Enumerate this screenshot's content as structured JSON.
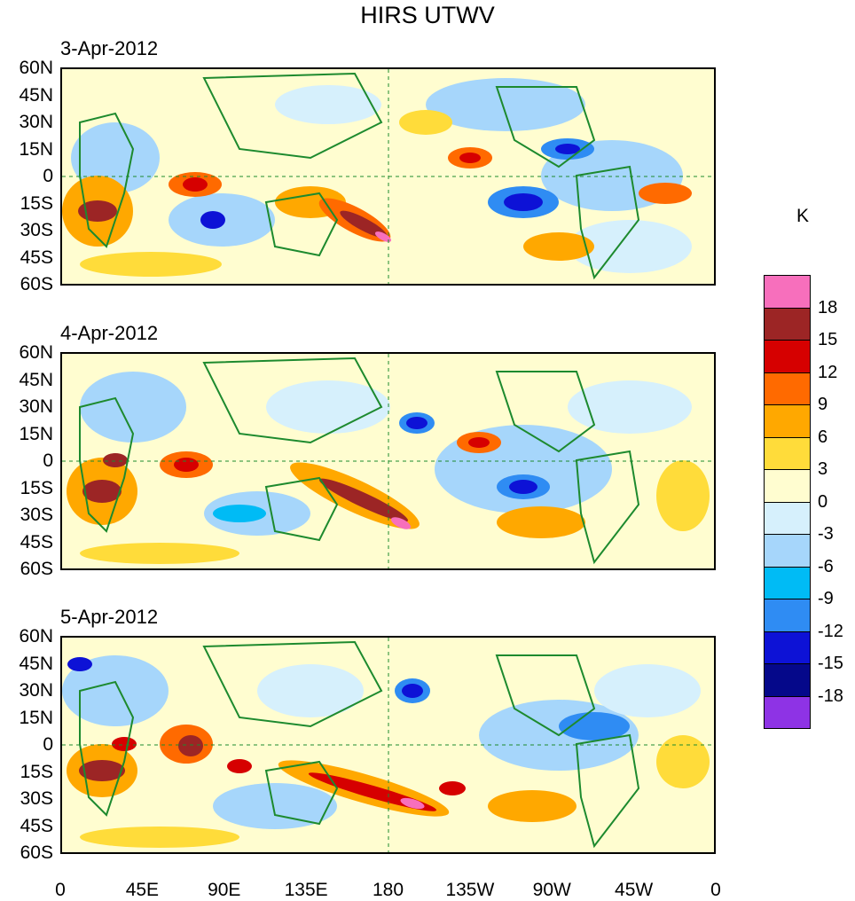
{
  "title": "HIRS UTWV",
  "panels": [
    {
      "date": "3-Apr-2012"
    },
    {
      "date": "4-Apr-2012"
    },
    {
      "date": "5-Apr-2012"
    }
  ],
  "lat_labels": [
    "60N",
    "45N",
    "30N",
    "15N",
    "0",
    "15S",
    "30S",
    "45S",
    "60S"
  ],
  "lon_labels": [
    "0",
    "45E",
    "90E",
    "135E",
    "180",
    "135W",
    "90W",
    "45W",
    "0"
  ],
  "colorbar": {
    "unit": "K",
    "labels": [
      "18",
      "15",
      "12",
      "9",
      "6",
      "3",
      "0",
      "-3",
      "-6",
      "-9",
      "-12",
      "-15",
      "-18"
    ],
    "colors": [
      "#f76fbc",
      "#9c2525",
      "#d60000",
      "#ff6a00",
      "#ffa800",
      "#ffdc3a",
      "#fffdd0",
      "#d6f0fc",
      "#a6d6fb",
      "#00bbf5",
      "#2f8cf3",
      "#0d12d6",
      "#05088a",
      "#8e33e5"
    ]
  },
  "map_colors": {
    "land_outline": "#1d8a2e",
    "grid_line": "#1d8a2e"
  }
}
